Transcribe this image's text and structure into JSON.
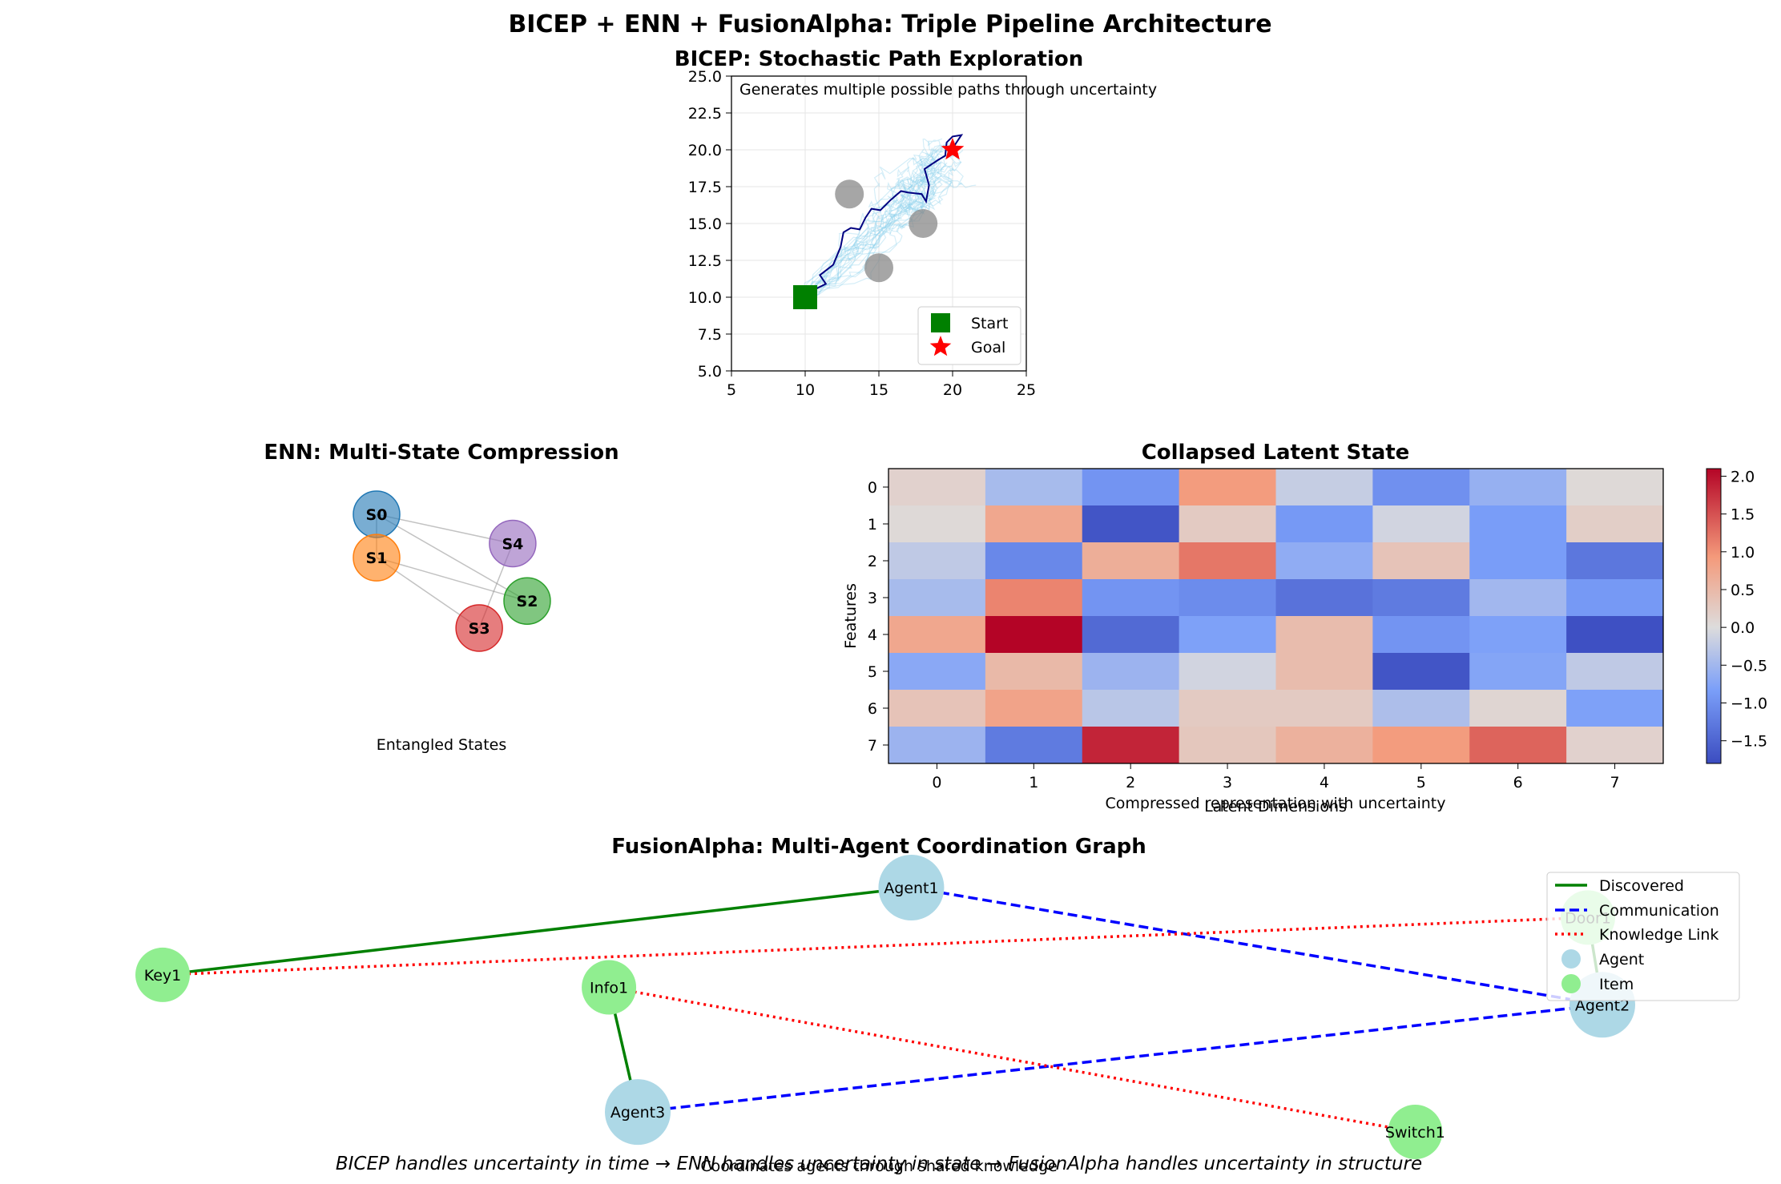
{
  "figure": {
    "title": "BICEP + ENN + FusionAlpha: Triple Pipeline Architecture",
    "footer": "BICEP handles uncertainty in time → ENN handles uncertainty in state → FusionAlpha handles uncertainty in structure"
  },
  "chart_data": [
    {
      "panel": "bicep",
      "type": "line",
      "title": "BICEP: Stochastic Path Exploration",
      "annotation": "Generates multiple possible paths through uncertainty",
      "xlim": [
        5,
        25
      ],
      "ylim": [
        5,
        25
      ],
      "xticks": [
        "5",
        "10",
        "15",
        "20",
        "25"
      ],
      "yticks": [
        "5.0",
        "7.5",
        "10.0",
        "12.5",
        "15.0",
        "17.5",
        "20.0",
        "22.5",
        "25.0"
      ],
      "grid": true,
      "legend": {
        "placement": "lower-right",
        "entries": [
          "Start",
          "Goal"
        ]
      },
      "start": {
        "x": 10,
        "y": 10
      },
      "goal": {
        "x": 20,
        "y": 20
      },
      "obstacles": [
        {
          "x": 13,
          "y": 17
        },
        {
          "x": 18,
          "y": 15
        },
        {
          "x": 15,
          "y": 12
        }
      ],
      "best_path": [
        [
          10.0,
          10.0
        ],
        [
          10.6,
          10.5
        ],
        [
          11.4,
          10.9
        ],
        [
          11.0,
          11.5
        ],
        [
          11.9,
          12.2
        ],
        [
          12.4,
          13.4
        ],
        [
          12.6,
          14.4
        ],
        [
          13.1,
          14.7
        ],
        [
          13.7,
          14.6
        ],
        [
          14.1,
          15.4
        ],
        [
          14.5,
          16.0
        ],
        [
          15.1,
          15.9
        ],
        [
          15.8,
          16.6
        ],
        [
          16.5,
          17.2
        ],
        [
          17.0,
          17.1
        ],
        [
          17.9,
          17.0
        ],
        [
          18.2,
          16.5
        ],
        [
          18.4,
          17.6
        ],
        [
          18.1,
          18.7
        ],
        [
          19.0,
          19.3
        ],
        [
          19.5,
          19.6
        ],
        [
          19.6,
          20.5
        ],
        [
          20.0,
          20.9
        ],
        [
          20.6,
          21.0
        ],
        [
          20.2,
          20.4
        ],
        [
          20.0,
          20.0
        ]
      ],
      "series": [
        {
          "name": "Start",
          "color": "#008000",
          "marker": "square"
        },
        {
          "name": "Goal",
          "color": "#ff0000",
          "marker": "star"
        }
      ]
    },
    {
      "panel": "enn-states",
      "type": "network",
      "title": "ENN: Multi-State Compression",
      "caption": "Entangled States",
      "nodes": [
        {
          "id": "S0",
          "color": "#1f77b4",
          "x": -0.55,
          "y": 0.75
        },
        {
          "id": "S1",
          "color": "#ff7f0e",
          "x": -0.55,
          "y": 0.35
        },
        {
          "id": "S2",
          "color": "#2ca02c",
          "x": 0.8,
          "y": -0.05
        },
        {
          "id": "S3",
          "color": "#d62728",
          "x": 0.37,
          "y": -0.3
        },
        {
          "id": "S4",
          "color": "#9467bd",
          "x": 0.67,
          "y": 0.48
        }
      ],
      "edges": [
        [
          "S0",
          "S4"
        ],
        [
          "S0",
          "S2"
        ],
        [
          "S0",
          "S1"
        ],
        [
          "S1",
          "S3"
        ],
        [
          "S1",
          "S2"
        ],
        [
          "S4",
          "S3"
        ]
      ]
    },
    {
      "panel": "latent",
      "type": "heatmap",
      "title": "Collapsed Latent State",
      "xlabel": "Latent Dimensions",
      "ylabel": "Features",
      "caption": "Compressed representation with uncertainty",
      "x": [
        "0",
        "1",
        "2",
        "3",
        "4",
        "5",
        "6",
        "7"
      ],
      "y": [
        "0",
        "1",
        "2",
        "3",
        "4",
        "5",
        "6",
        "7"
      ],
      "vmin": -1.8,
      "vmax": 2.1,
      "colorbar_ticks": [
        "2.0",
        "1.5",
        "1.0",
        "0.5",
        "0.0",
        "−0.5",
        "−1.0",
        "−1.5"
      ],
      "colorbar_tick_values": [
        2.0,
        1.5,
        1.0,
        0.5,
        0.0,
        -0.5,
        -1.0,
        -1.5
      ],
      "values": [
        [
          0.15,
          -0.45,
          -0.95,
          0.9,
          -0.2,
          -1.0,
          -0.6,
          0.05
        ],
        [
          0.05,
          0.75,
          -1.7,
          0.25,
          -0.9,
          -0.1,
          -0.85,
          0.2
        ],
        [
          -0.25,
          -1.1,
          0.65,
          1.2,
          -0.65,
          0.35,
          -0.85,
          -1.3
        ],
        [
          -0.45,
          1.1,
          -0.95,
          -1.05,
          -1.35,
          -1.25,
          -0.5,
          -0.9
        ],
        [
          0.75,
          2.1,
          -1.45,
          -0.8,
          0.45,
          -0.95,
          -0.8,
          -1.75
        ],
        [
          -0.7,
          0.5,
          -0.55,
          -0.1,
          0.45,
          -1.7,
          -0.75,
          -0.25
        ],
        [
          0.35,
          0.8,
          -0.3,
          0.25,
          0.25,
          -0.4,
          0.1,
          -0.8
        ],
        [
          -0.55,
          -1.25,
          1.85,
          0.3,
          0.6,
          0.9,
          1.35,
          0.15
        ]
      ]
    },
    {
      "panel": "fusion",
      "type": "network",
      "title": "FusionAlpha: Multi-Agent Coordination Graph",
      "caption": "Coordinates agents through shared knowledge",
      "legend": {
        "placement": "upper-right",
        "entries": [
          "Discovered",
          "Communication",
          "Knowledge Link",
          "Agent",
          "Item"
        ]
      },
      "nodes": [
        {
          "id": "Agent1",
          "kind": "agent",
          "x": 0.5,
          "y": 0.95
        },
        {
          "id": "Agent2",
          "kind": "agent",
          "x": 0.98,
          "y": 0.48
        },
        {
          "id": "Agent3",
          "kind": "agent",
          "x": 0.31,
          "y": 0.05
        },
        {
          "id": "Key1",
          "kind": "item",
          "x": -0.02,
          "y": 0.6
        },
        {
          "id": "Info1",
          "kind": "item",
          "x": 0.29,
          "y": 0.55
        },
        {
          "id": "Door1",
          "kind": "item",
          "x": 0.97,
          "y": 0.83
        },
        {
          "id": "Switch1",
          "kind": "item",
          "x": 0.85,
          "y": -0.03
        }
      ],
      "edges": [
        {
          "from": "Key1",
          "to": "Agent1",
          "type": "Discovered"
        },
        {
          "from": "Info1",
          "to": "Agent3",
          "type": "Discovered"
        },
        {
          "from": "Door1",
          "to": "Agent2",
          "type": "Discovered"
        },
        {
          "from": "Agent1",
          "to": "Agent2",
          "type": "Communication"
        },
        {
          "from": "Agent3",
          "to": "Agent2",
          "type": "Communication"
        },
        {
          "from": "Key1",
          "to": "Door1",
          "type": "Knowledge Link"
        },
        {
          "from": "Info1",
          "to": "Switch1",
          "type": "Knowledge Link"
        }
      ],
      "colors": {
        "Discovered": "#008000",
        "Communication": "#0000ff",
        "Knowledge Link": "#ff0000",
        "agent": "#add8e6",
        "item": "#90ee90"
      }
    }
  ]
}
